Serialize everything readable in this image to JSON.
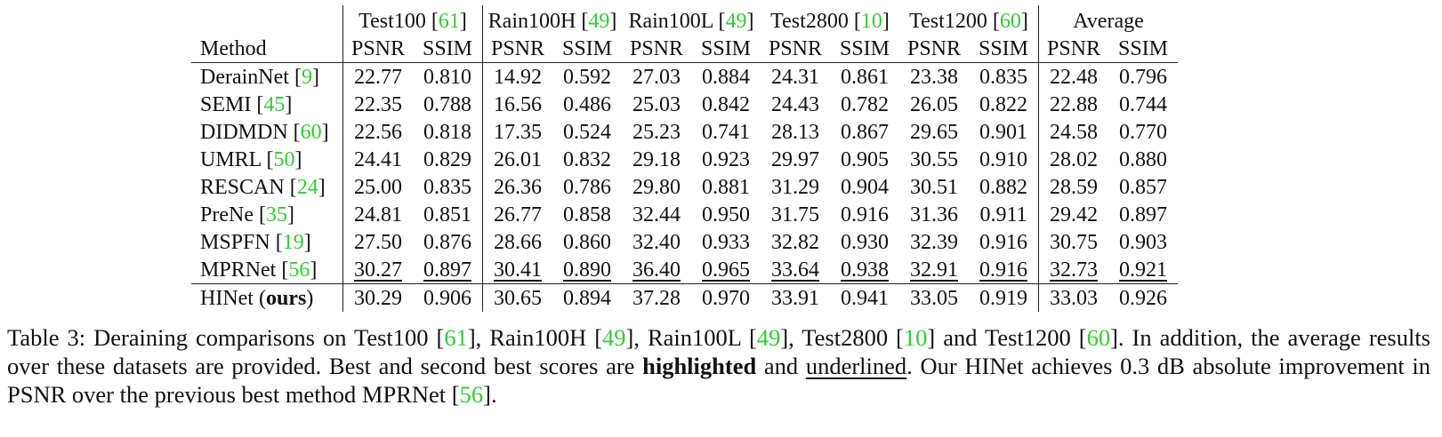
{
  "table": {
    "method_header": "Method",
    "groups": [
      {
        "name": "Test100",
        "ref": "61"
      },
      {
        "name": "Rain100H",
        "ref": "49"
      },
      {
        "name": "Rain100L",
        "ref": "49"
      },
      {
        "name": "Test2800",
        "ref": "10"
      },
      {
        "name": "Test1200",
        "ref": "60"
      },
      {
        "name": "Average",
        "ref": ""
      }
    ],
    "metric_psnr": "PSNR",
    "metric_ssim": "SSIM",
    "rows": [
      {
        "method": "DerainNet",
        "ref": "9",
        "values": [
          "22.77",
          "0.810",
          "14.92",
          "0.592",
          "27.03",
          "0.884",
          "24.31",
          "0.861",
          "23.38",
          "0.835",
          "22.48",
          "0.796"
        ]
      },
      {
        "method": "SEMI",
        "ref": "45",
        "values": [
          "22.35",
          "0.788",
          "16.56",
          "0.486",
          "25.03",
          "0.842",
          "24.43",
          "0.782",
          "26.05",
          "0.822",
          "22.88",
          "0.744"
        ]
      },
      {
        "method": "DIDMDN",
        "ref": "60",
        "values": [
          "22.56",
          "0.818",
          "17.35",
          "0.524",
          "25.23",
          "0.741",
          "28.13",
          "0.867",
          "29.65",
          "0.901",
          "24.58",
          "0.770"
        ]
      },
      {
        "method": "UMRL",
        "ref": "50",
        "values": [
          "24.41",
          "0.829",
          "26.01",
          "0.832",
          "29.18",
          "0.923",
          "29.97",
          "0.905",
          "30.55",
          "0.910",
          "28.02",
          "0.880"
        ]
      },
      {
        "method": "RESCAN",
        "ref": "24",
        "values": [
          "25.00",
          "0.835",
          "26.36",
          "0.786",
          "29.80",
          "0.881",
          "31.29",
          "0.904",
          "30.51",
          "0.882",
          "28.59",
          "0.857"
        ]
      },
      {
        "method": "PreNe",
        "ref": "35",
        "values": [
          "24.81",
          "0.851",
          "26.77",
          "0.858",
          "32.44",
          "0.950",
          "31.75",
          "0.916",
          "31.36",
          "0.911",
          "29.42",
          "0.897"
        ]
      },
      {
        "method": "MSPFN",
        "ref": "19",
        "values": [
          "27.50",
          "0.876",
          "28.66",
          "0.860",
          "32.40",
          "0.933",
          "32.82",
          "0.930",
          "32.39",
          "0.916",
          "30.75",
          "0.903"
        ]
      },
      {
        "method": "MPRNet",
        "ref": "56",
        "values": [
          "30.27",
          "0.897",
          "30.41",
          "0.890",
          "36.40",
          "0.965",
          "33.64",
          "0.938",
          "32.91",
          "0.916",
          "32.73",
          "0.921"
        ]
      }
    ],
    "ours": {
      "method": "HINet",
      "suffix_open": " (",
      "suffix_bold": "ours",
      "suffix_close": ")",
      "values": [
        "30.29",
        "0.906",
        "30.65",
        "0.894",
        "37.28",
        "0.970",
        "33.91",
        "0.941",
        "33.05",
        "0.919",
        "33.03",
        "0.926"
      ]
    }
  },
  "caption": {
    "t1": "Table 3:  Deraining comparisons on Test100 [",
    "r1": "61",
    "t2": "], Rain100H [",
    "r2": "49",
    "t3": "], Rain100L [",
    "r3": "49",
    "t4": "], Test2800 [",
    "r4": "10",
    "t5": "] and Test1200 [",
    "r5": "60",
    "t6": "].  In addition, the average results over these datasets are provided.  Best and second best scores are ",
    "bold": "highlighted",
    "t7": " and ",
    "underline": "underlined",
    "t8": ". Our HINet achieves 0.3 dB absolute improvement in PSNR over the previous best method MPRNet [",
    "r6": "56",
    "t9": "]."
  },
  "colors": {
    "citation": "#33cc33",
    "text": "#111111"
  }
}
